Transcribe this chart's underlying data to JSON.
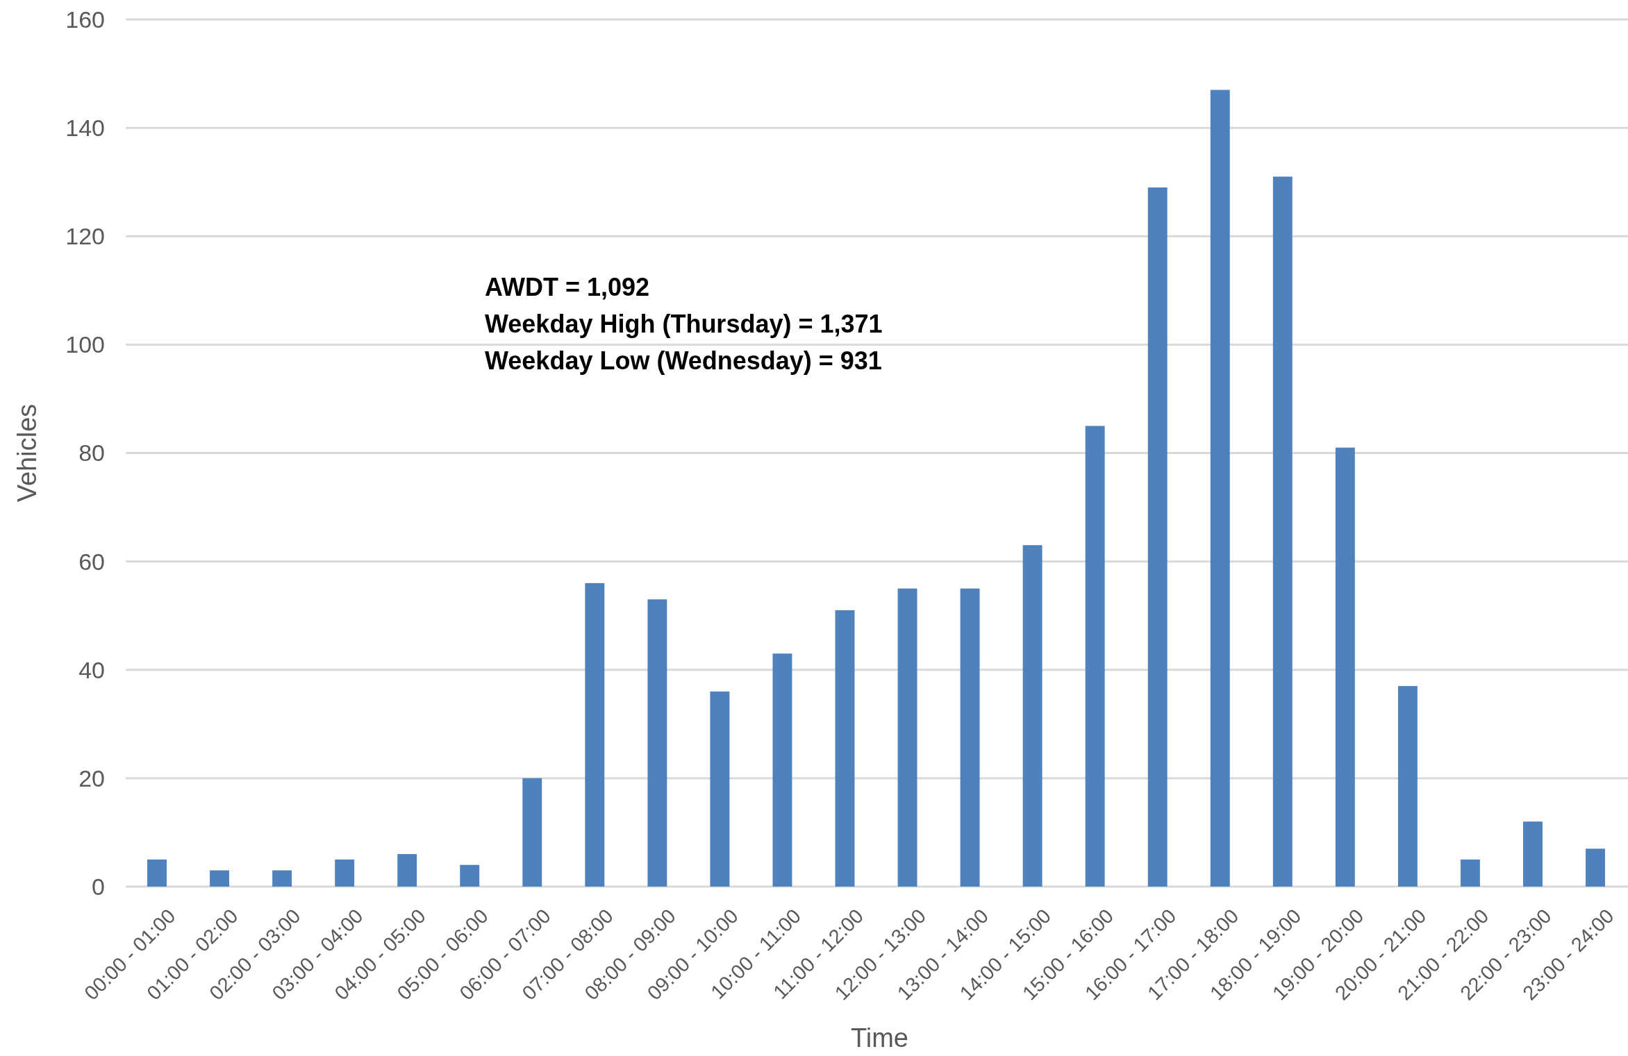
{
  "chart_data": {
    "type": "bar",
    "xlabel": "Time",
    "ylabel": "Vehicles",
    "categories": [
      "00:00 - 01:00",
      "01:00 - 02:00",
      "02:00 - 03:00",
      "03:00 - 04:00",
      "04:00 - 05:00",
      "05:00 - 06:00",
      "06:00 - 07:00",
      "07:00 - 08:00",
      "08:00 - 09:00",
      "09:00 - 10:00",
      "10:00 - 11:00",
      "11:00 - 12:00",
      "12:00 - 13:00",
      "13:00 - 14:00",
      "14:00 - 15:00",
      "15:00 - 16:00",
      "16:00 - 17:00",
      "17:00 - 18:00",
      "18:00 - 19:00",
      "19:00 - 20:00",
      "20:00 - 21:00",
      "21:00 - 22:00",
      "22:00 - 23:00",
      "23:00 - 24:00"
    ],
    "values": [
      5,
      3,
      3,
      5,
      6,
      4,
      20,
      56,
      53,
      36,
      43,
      51,
      55,
      55,
      63,
      85,
      129,
      147,
      131,
      81,
      37,
      5,
      12,
      7
    ],
    "color": "#4f81bd",
    "ylim": [
      0,
      160
    ],
    "yticks": [
      0,
      20,
      40,
      60,
      80,
      100,
      120,
      140,
      160
    ],
    "grid": "y",
    "annotations": [
      "AWDT = 1,092",
      "Weekday High (Thursday) = 1,371",
      "Weekday Low (Wednesday) = 931"
    ]
  }
}
